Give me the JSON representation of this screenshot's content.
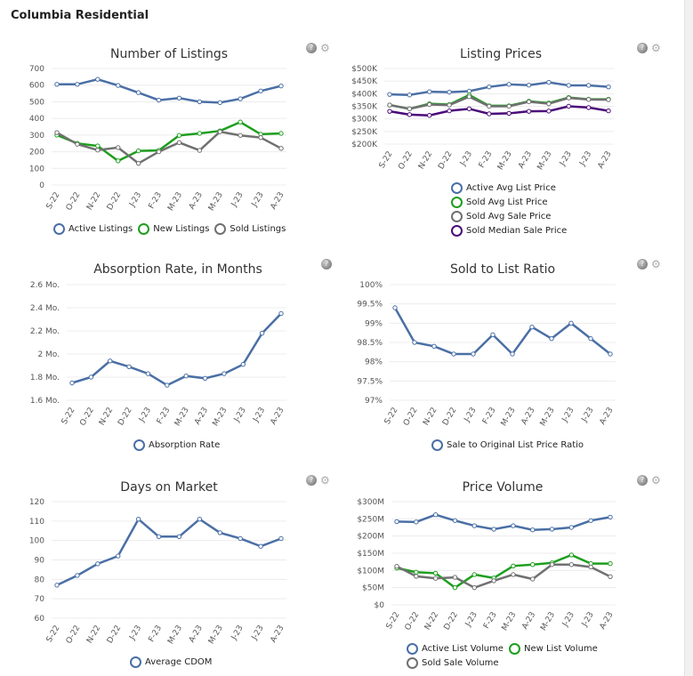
{
  "page_title": "Columbia Residential",
  "icons": {
    "help": "help-icon",
    "export": "export-icon"
  },
  "chart_data": [
    {
      "type": "line",
      "title": "Number of Listings",
      "categories": [
        "S-22",
        "O-22",
        "N-22",
        "D-22",
        "J-23",
        "F-23",
        "M-23",
        "A-23",
        "M-23",
        "J-23",
        "J-23",
        "A-23"
      ],
      "ylim": [
        0,
        700
      ],
      "yticks": [
        0,
        100,
        200,
        300,
        400,
        500,
        600,
        700
      ],
      "ytick_labels": [
        "0",
        "100",
        "200",
        "300",
        "400",
        "500",
        "600",
        "700"
      ],
      "grid": true,
      "legend": "bottom",
      "series": [
        {
          "name": "Active Listings",
          "color": "#4a6fa5",
          "values": [
            605,
            605,
            635,
            598,
            555,
            510,
            522,
            500,
            495,
            518,
            565,
            595
          ]
        },
        {
          "name": "New Listings",
          "color": "#1e9e1e",
          "values": [
            300,
            250,
            235,
            145,
            205,
            208,
            298,
            310,
            325,
            378,
            305,
            310
          ]
        },
        {
          "name": "Sold Listings",
          "color": "#707070",
          "values": [
            315,
            245,
            210,
            225,
            130,
            200,
            255,
            208,
            320,
            298,
            285,
            220
          ]
        }
      ]
    },
    {
      "type": "line",
      "title": "Listing Prices",
      "categories": [
        "S-22",
        "O-22",
        "N-22",
        "D-22",
        "J-23",
        "F-23",
        "M-23",
        "A-23",
        "M-23",
        "J-23",
        "J-23",
        "A-23"
      ],
      "ylim": [
        200,
        500
      ],
      "yticks": [
        200,
        250,
        300,
        350,
        400,
        450,
        500
      ],
      "ytick_labels": [
        "$200K",
        "$250K",
        "$300K",
        "$350K",
        "$400K",
        "$450K",
        "$500K"
      ],
      "grid": true,
      "legend": "bottom",
      "series": [
        {
          "name": "Active Avg List Price",
          "color": "#4a6fa5",
          "values": [
            397,
            395,
            408,
            406,
            410,
            427,
            437,
            434,
            445,
            433,
            433,
            427
          ]
        },
        {
          "name": "Sold Avg List Price",
          "color": "#1e9e1e",
          "values": [
            355,
            340,
            360,
            357,
            395,
            352,
            352,
            370,
            363,
            385,
            378,
            378
          ]
        },
        {
          "name": "Sold Avg Sale Price",
          "color": "#707070",
          "values": [
            355,
            340,
            357,
            355,
            388,
            350,
            350,
            368,
            360,
            383,
            377,
            376
          ]
        },
        {
          "name": "Sold Median Sale Price",
          "color": "#4b0a7a",
          "values": [
            330,
            317,
            314,
            332,
            340,
            320,
            322,
            330,
            331,
            350,
            345,
            332
          ]
        }
      ]
    },
    {
      "type": "line",
      "title": "Absorption Rate, in Months",
      "categories": [
        "S-22",
        "O-22",
        "N-22",
        "D-22",
        "J-23",
        "F-23",
        "M-23",
        "A-23",
        "M-23",
        "J-23",
        "J-23",
        "A-23"
      ],
      "ylim": [
        1.6,
        2.6
      ],
      "yticks": [
        1.6,
        1.8,
        2,
        2.2,
        2.4,
        2.6
      ],
      "ytick_labels": [
        "1.6 Mo.",
        "1.8 Mo.",
        "2 Mo.",
        "2.2 Mo.",
        "2.4 Mo.",
        "2.6 Mo."
      ],
      "grid": true,
      "legend": "bottom",
      "series": [
        {
          "name": "Absorption Rate",
          "color": "#4a6fa5",
          "values": [
            1.75,
            1.8,
            1.94,
            1.89,
            1.83,
            1.73,
            1.81,
            1.79,
            1.83,
            1.91,
            2.18,
            2.35
          ]
        }
      ]
    },
    {
      "type": "line",
      "title": "Sold to List Ratio",
      "categories": [
        "S-22",
        "O-22",
        "N-22",
        "D-22",
        "J-23",
        "F-23",
        "M-23",
        "A-23",
        "M-23",
        "J-23",
        "J-23",
        "A-23"
      ],
      "ylim": [
        97,
        100
      ],
      "yticks": [
        97,
        97.5,
        98,
        98.5,
        99,
        99.5,
        100
      ],
      "ytick_labels": [
        "97%",
        "97.5%",
        "98%",
        "98.5%",
        "99%",
        "99.5%",
        "100%"
      ],
      "grid": true,
      "legend": "bottom",
      "series": [
        {
          "name": "Sale to Original List Price Ratio",
          "color": "#4a6fa5",
          "values": [
            99.4,
            98.5,
            98.4,
            98.2,
            98.2,
            98.7,
            98.2,
            98.9,
            98.6,
            99.0,
            98.6,
            98.2
          ]
        }
      ]
    },
    {
      "type": "line",
      "title": "Days on Market",
      "categories": [
        "S-22",
        "O-22",
        "N-22",
        "D-22",
        "J-23",
        "F-23",
        "M-23",
        "A-23",
        "M-23",
        "J-23",
        "J-23",
        "A-23"
      ],
      "ylim": [
        60,
        120
      ],
      "yticks": [
        60,
        70,
        80,
        90,
        100,
        110,
        120
      ],
      "ytick_labels": [
        "60",
        "70",
        "80",
        "90",
        "100",
        "110",
        "120"
      ],
      "grid": true,
      "legend": "bottom",
      "series": [
        {
          "name": "Average CDOM",
          "color": "#4a6fa5",
          "values": [
            77,
            82,
            88,
            92,
            111,
            102,
            102,
            111,
            104,
            101,
            97,
            101
          ]
        }
      ]
    },
    {
      "type": "line",
      "title": "Price Volume",
      "categories": [
        "S-22",
        "O-22",
        "N-22",
        "D-22",
        "J-23",
        "F-23",
        "M-23",
        "A-23",
        "M-23",
        "J-23",
        "J-23",
        "A-23"
      ],
      "ylim": [
        0,
        300
      ],
      "yticks": [
        0,
        50,
        100,
        150,
        200,
        250,
        300
      ],
      "ytick_labels": [
        "$0",
        "$50M",
        "$100M",
        "$150M",
        "$200M",
        "$250M",
        "$300M"
      ],
      "grid": true,
      "legend": "bottom",
      "series": [
        {
          "name": "Active List Volume",
          "color": "#4a6fa5",
          "values": [
            242,
            241,
            262,
            245,
            230,
            220,
            230,
            218,
            220,
            225,
            245,
            255
          ]
        },
        {
          "name": "New List Volume",
          "color": "#1e9e1e",
          "values": [
            107,
            95,
            92,
            50,
            88,
            78,
            113,
            117,
            122,
            145,
            120,
            120
          ]
        },
        {
          "name": "Sold Sale Volume",
          "color": "#707070",
          "values": [
            112,
            83,
            77,
            80,
            50,
            70,
            88,
            75,
            117,
            117,
            110,
            82
          ]
        }
      ]
    }
  ]
}
